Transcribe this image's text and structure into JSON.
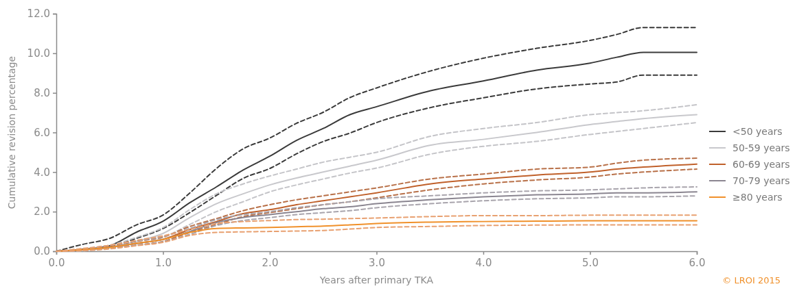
{
  "chart_data": {
    "type": "line",
    "xlabel": "Years after primary TKA",
    "ylabel": "Cumulative revision percentage",
    "x": [
      0,
      0.25,
      0.5,
      0.75,
      1,
      1.25,
      1.5,
      1.75,
      2,
      2.25,
      2.5,
      2.75,
      3,
      3.5,
      4,
      4.5,
      5,
      5.25,
      5.5,
      6
    ],
    "xlim": [
      0,
      6
    ],
    "xticks": [
      {
        "value": 0,
        "label": "0.0"
      },
      {
        "value": 1,
        "label": "1.0"
      },
      {
        "value": 2,
        "label": "2.0"
      },
      {
        "value": 3,
        "label": "3.0"
      },
      {
        "value": 4,
        "label": "4.0"
      },
      {
        "value": 5,
        "label": "5.0"
      },
      {
        "value": 6,
        "label": "6.0"
      }
    ],
    "ylim": [
      0,
      12
    ],
    "yticks": [
      {
        "value": 0,
        "label": "0.0"
      },
      {
        "value": 2,
        "label": "2.0"
      },
      {
        "value": 4,
        "label": "4.0"
      },
      {
        "value": 6,
        "label": "6.0"
      },
      {
        "value": 8,
        "label": "8.0"
      },
      {
        "value": 10,
        "label": "10.0"
      },
      {
        "value": 12,
        "label": "12.0"
      }
    ],
    "grid": false,
    "legend": "right",
    "line_style": "solid",
    "marker": "none",
    "series": [
      {
        "name": "<50 years",
        "color": "#3a3a3a",
        "values": [
          0,
          0.1,
          0.28,
          0.96,
          1.52,
          2.45,
          3.25,
          4.1,
          4.8,
          5.6,
          6.2,
          6.9,
          7.3,
          8.1,
          8.6,
          9.15,
          9.5,
          9.8,
          10.05,
          10.05
        ]
      },
      {
        "color": "#3a3a3a",
        "line_style": "dashed",
        "values": [
          0,
          0.35,
          0.65,
          1.33,
          1.83,
          2.94,
          4.18,
          5.17,
          5.72,
          6.46,
          7.02,
          7.76,
          8.25,
          9.1,
          9.75,
          10.25,
          10.65,
          10.95,
          11.3,
          11.3
        ]
      },
      {
        "color": "#3a3a3a",
        "line_style": "dashed",
        "values": [
          0,
          0.04,
          0.22,
          0.65,
          1.15,
          1.95,
          2.82,
          3.68,
          4.18,
          4.92,
          5.54,
          5.97,
          6.5,
          7.25,
          7.75,
          8.2,
          8.45,
          8.55,
          8.9,
          8.9
        ]
      },
      {
        "name": "50-59 years",
        "color": "#c8c8cc",
        "values": [
          0,
          0.05,
          0.2,
          0.5,
          0.9,
          1.7,
          2.4,
          2.9,
          3.35,
          3.7,
          4.0,
          4.3,
          4.6,
          5.35,
          5.65,
          6.0,
          6.4,
          6.55,
          6.7,
          6.9
        ]
      },
      {
        "color": "#c4c4c8",
        "line_style": "dashed",
        "values": [
          0,
          0.1,
          0.3,
          0.7,
          1.2,
          2.1,
          2.9,
          3.4,
          3.8,
          4.15,
          4.5,
          4.75,
          5.0,
          5.8,
          6.2,
          6.5,
          6.9,
          7.0,
          7.1,
          7.4
        ]
      },
      {
        "color": "#c4c4c8",
        "line_style": "dashed",
        "values": [
          0,
          0.02,
          0.15,
          0.35,
          0.7,
          1.35,
          2.0,
          2.5,
          3.0,
          3.35,
          3.65,
          3.95,
          4.2,
          4.9,
          5.3,
          5.55,
          5.9,
          6.05,
          6.2,
          6.5
        ]
      },
      {
        "name": "60-69 years",
        "color": "#c0602a",
        "values": [
          0,
          0.08,
          0.2,
          0.4,
          0.6,
          1.1,
          1.5,
          1.9,
          2.1,
          2.35,
          2.55,
          2.75,
          2.95,
          3.4,
          3.65,
          3.85,
          4.0,
          4.15,
          4.25,
          4.4
        ]
      },
      {
        "color": "#b87048",
        "line_style": "dashed",
        "values": [
          0,
          0.12,
          0.28,
          0.5,
          0.72,
          1.25,
          1.65,
          2.05,
          2.35,
          2.6,
          2.8,
          3.0,
          3.2,
          3.65,
          3.9,
          4.15,
          4.25,
          4.45,
          4.6,
          4.7
        ]
      },
      {
        "color": "#b87048",
        "line_style": "dashed",
        "values": [
          0,
          0.05,
          0.15,
          0.3,
          0.5,
          0.95,
          1.35,
          1.75,
          1.95,
          2.15,
          2.35,
          2.5,
          2.7,
          3.1,
          3.4,
          3.6,
          3.75,
          3.9,
          4.0,
          4.15
        ]
      },
      {
        "name": "70-79 years",
        "color": "#8a8590",
        "values": [
          0,
          0.08,
          0.2,
          0.4,
          0.6,
          1.0,
          1.45,
          1.7,
          1.85,
          2.0,
          2.15,
          2.25,
          2.4,
          2.6,
          2.75,
          2.85,
          2.9,
          2.95,
          2.95,
          3.0
        ]
      },
      {
        "color": "#a8a4ac",
        "line_style": "dashed",
        "values": [
          0,
          0.12,
          0.3,
          0.52,
          0.75,
          1.15,
          1.6,
          1.85,
          2.0,
          2.2,
          2.35,
          2.5,
          2.65,
          2.8,
          2.95,
          3.05,
          3.1,
          3.15,
          3.2,
          3.25
        ]
      },
      {
        "color": "#a8a4ac",
        "line_style": "dashed",
        "values": [
          0,
          0.04,
          0.14,
          0.3,
          0.48,
          0.85,
          1.3,
          1.55,
          1.7,
          1.85,
          1.95,
          2.05,
          2.2,
          2.4,
          2.55,
          2.65,
          2.7,
          2.75,
          2.75,
          2.8
        ]
      },
      {
        "name": "≥80 years",
        "color": "#f0902a",
        "values": [
          0,
          0.08,
          0.2,
          0.4,
          0.6,
          0.95,
          1.15,
          1.18,
          1.2,
          1.24,
          1.27,
          1.33,
          1.4,
          1.47,
          1.5,
          1.52,
          1.54,
          1.54,
          1.54,
          1.54
        ]
      },
      {
        "color": "#e8a070",
        "line_style": "dashed",
        "values": [
          0,
          0.14,
          0.3,
          0.55,
          0.78,
          1.1,
          1.4,
          1.5,
          1.55,
          1.6,
          1.62,
          1.65,
          1.68,
          1.75,
          1.8,
          1.8,
          1.82,
          1.82,
          1.82,
          1.82
        ]
      },
      {
        "color": "#e8a070",
        "line_style": "dashed",
        "values": [
          0,
          0.03,
          0.12,
          0.28,
          0.45,
          0.8,
          0.95,
          0.98,
          1.0,
          1.02,
          1.05,
          1.12,
          1.2,
          1.25,
          1.3,
          1.32,
          1.33,
          1.33,
          1.33,
          1.33
        ]
      }
    ],
    "annotations": [
      "© LROI 2015"
    ]
  }
}
